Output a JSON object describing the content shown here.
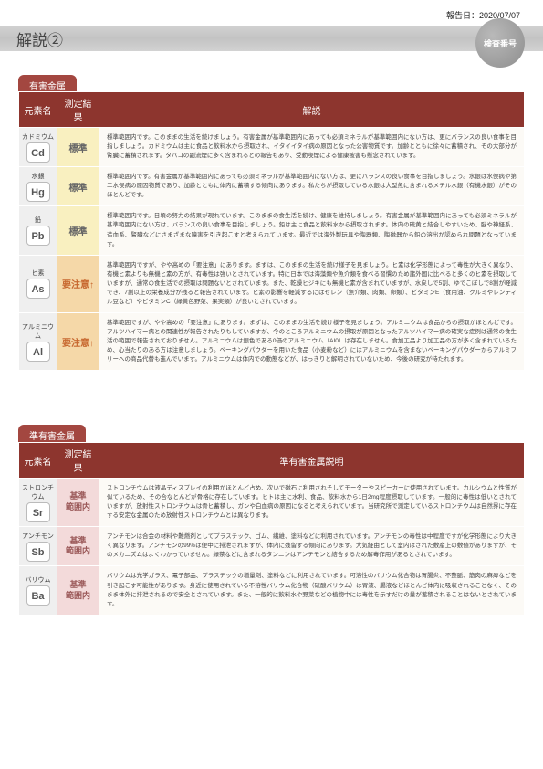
{
  "report_date_label": "報告日：2020/07/07",
  "page_title": "解説②",
  "badge_text": "検査番号",
  "sections": [
    {
      "tab": "有害金属",
      "headers": [
        "元素名",
        "測定結果",
        "解説"
      ],
      "rows": [
        {
          "name": "カドミウム",
          "symbol": "Cd",
          "result": "標準",
          "result_class": "res-std",
          "desc": "標準範囲内です。このままの生活を続けましょう。有害金属が基準範囲内にあっても必須ミネラルが基準範囲内にない方は、更にバランスの良い食事を目指しましょう。カドミウムは主に食品と飲料水から摂取され、イタイイタイ病の原因となった公害物質です。加齢とともに徐々に蓄積され、その大部分が腎臓に蓄積されます。タバコの副流煙に多く含まれるとの報告もあり、受動喫煙による健康被害も懸念されています。"
        },
        {
          "name": "水銀",
          "symbol": "Hg",
          "result": "標準",
          "result_class": "res-std",
          "desc": "標準範囲内です。有害金属が基準範囲内にあっても必須ミネラルが基準範囲内にない方は、更にバランスの良い食事を目指しましょう。水銀は水俣病や第二水俣病の原因物質であり、加齢とともに体内に蓄積する傾向にあります。私たちが摂取している水銀は大型魚に含まれるメチル水銀（有機水銀）がそのほとんどです。"
        },
        {
          "name": "鉛",
          "symbol": "Pb",
          "result": "標準",
          "result_class": "res-std",
          "desc": "標準範囲内です。日頃の努力の結果が現れています。このままの食生活を続け、健康を維持しましょう。有害金属が基準範囲内にあっても必須ミネラルが基準範囲内にない方は、バランスの良い食事を目指しましょう。鉛は主に食品と飲料水から摂取されます。体内の硫黄と結合しやすいため、脳や神経系、造血系、腎臓などにさまざまな障害を引き起こすと考えられています。最近では海外製玩具や陶器類、陶磁器から鉛の溶出が認められ問題となっています。"
        },
        {
          "name": "ヒ素",
          "symbol": "As",
          "result": "要注意↑",
          "result_class": "res-warn",
          "desc": "基準範囲内ですが、やや高めの「要注意」にあります。まずは、このままの生活を続け様子を見ましょう。ヒ素は化学形態によって毒性が大きく異なり、有機ヒ素よりも無機ヒ素の方が、有毒性は強いとされています。特に日本では海藻類や魚介類を食べる習慣のため諸外国に比べると多くのヒ素を摂取していますが、通常の食生活での摂取は問題ないとされています。また、乾燥ヒジキにも無機ヒ素が含まれていますが、水戻しで5割、ゆでこぼしで8割が軽減でき、7割以上の栄養成分が残ると報告されています。ヒ素の影響を軽減するにはセレン（魚介類、肉類、卵類）、ビタミンE（食用油、クルミやレンティル豆など）やビタミンC（緑黄色野菜、果実類）が良いとされています。"
        },
        {
          "name": "アルミニウム",
          "symbol": "Al",
          "result": "要注意↑",
          "result_class": "res-warn",
          "desc": "基準範囲ですが、やや高めの「要注意」にあります。まずは、このままの生活を続け様子を見ましょう。アルミニウムは食品からの摂取がほとんどです。アルツハイマー病との関連性が報告されたりもしていますが、今のところアルミニウムの摂取が原因となったアルツハイマー病の確実な症例は通常の食生活の範囲で報告されておりません。アルミニウムは銀色である0価のアルミニウム（AI0）は存在しません。食加工品より加工品の方が多く含まれているため、心当たりのある方は注意しましょう。ベーキングパウダーを用いた食品（小麦粉など）にはアルミニウムを含まないベーキングパウダーからアルミフリーへの商品代替も進んでいます。アルミニウムは体内での動態などが、はっきりと解明されていないため、今後の研究が待たれます。"
        }
      ]
    },
    {
      "tab": "準有害金属",
      "headers": [
        "元素名",
        "測定結果",
        "準有害金属説明"
      ],
      "rows": [
        {
          "name": "ストロンチウム",
          "symbol": "Sr",
          "result": "基準\n範囲内",
          "result_class": "res-in",
          "desc": "ストロンチウムは液晶ディスプレイの利用がほとんど占め、次いで磁石に利用されそしてモーターやスピーカーに使用されています。カルシウムと性質が似ているため、その合なとんどが骨格に存在しています。ヒトは主に水利、食品、飲料水から1日2mg程度摂取しています。一般的に毒性は低いとされていますが、放射性ストロンチウムは骨ヒ蓄積し、ガンや白血病の原因になると考えられています。当研究所で測定しているストロンチウムは自然界に存在する安定な金属のため放射性ストロンチウムとは異なります。"
        },
        {
          "name": "アンチモン",
          "symbol": "Sb",
          "result": "基準\n範囲内",
          "result_class": "res-in",
          "desc": "アンチモンは合金の材料や難燃剤としてプラスチック、ゴム、繊維、塗料などに利用されています。アンチモンの毒性は中程度ですが化学形態により大きく異なります。アンチモンの99%は便中に排泄されますが、体内に残留する傾向にあります。大気経由として室内はされた敷産上の敷値がありますが、そのメカニズムはよくわかっていません。緑茶などに含まれるタンニンはアンチモンと結合するため解毒作用があるとされています。"
        },
        {
          "name": "バリウム",
          "symbol": "Ba",
          "result": "基準\n範囲内",
          "result_class": "res-in",
          "desc": "バリウムは光学ガラス、電子部品、プラスチックの増量剤、塗料などに利用されています。可溶性のバリウム化合物は胃腸炎、不整脈、筋肉の麻痺などを引き起こす可能性があります。身近に使用されている不溶性バリウム化合物（硫酸バリウム）は胃液、腸液などほとんど体内に吸収されることなく、そのまま体外に排泄されるので安全とされています。また、一般的に飲料水や野菜などの植物中には毒性を示すだけの量が蓄積されることはないとされています。"
        }
      ]
    }
  ],
  "colors": {
    "header_bg": "#8d352e",
    "tab_bg": "#a34740"
  }
}
